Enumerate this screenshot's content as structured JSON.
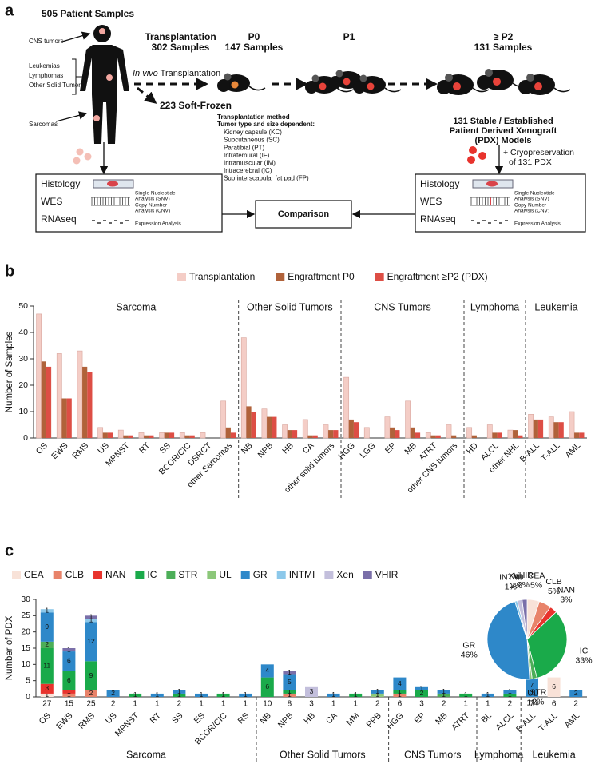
{
  "panel_a": {
    "label": "a",
    "patient_title": "505 Patient Samples",
    "sites": [
      "CNS tumors",
      "Leukemias",
      "Lymphomas",
      "Other Solid Tumors",
      "Sarcomas"
    ],
    "stages": [
      {
        "name": "Transplantation",
        "count": "302 Samples"
      },
      {
        "name": "P0",
        "count": "147 Samples"
      },
      {
        "name": "P1"
      },
      {
        "name": "≥ P2",
        "count": "131 Samples"
      }
    ],
    "transplant_italic": "In vivo",
    "transplant_text": "Transplantation",
    "frozen": "223 Soft-Frozen",
    "method_title": "Transplantation method",
    "method_subtitle": "Tumor type and size dependent:",
    "method_items": [
      "Kidney capsule  (KC)",
      "Subcutaneous (SC)",
      "Paratibial (PT)",
      "Intrafemural (IF)",
      "Intramuscular (IM)",
      "Intracerebral (IC)",
      "Sub interscapular fat pad (FP)"
    ],
    "models": [
      "131 Stable / Established",
      "Patient Derived Xenograft",
      "(PDX) Models"
    ],
    "cryo": [
      "+ Cryopreservation",
      "of 131 PDX"
    ],
    "analysis_rows": [
      "Histology",
      "WES",
      "RNAseq"
    ],
    "analysis_notes": [
      "Single Nucleotide",
      "Analysis (SNV)",
      "Copy Number",
      "Analysis (CNV)",
      "Expression Analysis"
    ],
    "comparison": "Comparison"
  },
  "chart_data": [
    {
      "type": "bar",
      "panel_label": "b",
      "ylabel": "Number of Samples",
      "ylim": [
        0,
        50
      ],
      "yticks": [
        0,
        10,
        20,
        30,
        40,
        50
      ],
      "groups": [
        {
          "label": "Sarcoma",
          "categories": [
            "OS",
            "EWS",
            "RMS",
            "US",
            "MPNST",
            "RT",
            "SS",
            "BCOR/CIC",
            "DSRCT",
            "other Sarcomas"
          ]
        },
        {
          "label": "Other Solid Tumors",
          "categories": [
            "NB",
            "NPB",
            "HB",
            "CA",
            "other solid tumors"
          ]
        },
        {
          "label": "CNS Tumors",
          "categories": [
            "HGG",
            "LGG",
            "EP",
            "MB",
            "ATRT",
            "other CNS tumors"
          ]
        },
        {
          "label": "Lymphoma",
          "categories": [
            "HD",
            "ALCL",
            "other NHL"
          ]
        },
        {
          "label": "Leukemia",
          "categories": [
            "B-ALL",
            "T-ALL",
            "AML"
          ]
        }
      ],
      "series": [
        {
          "name": "Transplantation",
          "color": "#f4cdc6",
          "values": [
            47,
            32,
            33,
            4,
            3,
            2,
            2,
            2,
            2,
            14,
            38,
            11,
            5,
            7,
            5,
            23,
            4,
            8,
            14,
            2,
            5,
            4,
            5,
            3,
            9,
            8,
            10
          ]
        },
        {
          "name": "Engraftment P0",
          "color": "#b0623a",
          "values": [
            29,
            15,
            27,
            2,
            1,
            1,
            2,
            1,
            0,
            4,
            12,
            8,
            3,
            1,
            3,
            7,
            0,
            4,
            4,
            1,
            1,
            1,
            2,
            3,
            7,
            6,
            2
          ]
        },
        {
          "name": "Engraftment ≥P2 (PDX)",
          "color": "#dd4e45",
          "values": [
            27,
            15,
            25,
            2,
            1,
            1,
            2,
            1,
            0,
            2,
            10,
            8,
            3,
            1,
            3,
            6,
            0,
            3,
            2,
            1,
            0,
            0,
            2,
            1,
            7,
            6,
            2
          ]
        }
      ]
    },
    {
      "type": "stacked_bar",
      "panel_label": "c",
      "ylabel": "Number of PDX",
      "ylim": [
        0,
        30
      ],
      "yticks": [
        0,
        5,
        10,
        15,
        20,
        25,
        30
      ],
      "groups": [
        {
          "label": "Sarcoma",
          "categories": [
            "OS",
            "EWS",
            "RMS",
            "US",
            "MPNST",
            "RT",
            "SS",
            "ES",
            "BCOR/CIC",
            "RS"
          ]
        },
        {
          "label": "Other Solid Tumors",
          "categories": [
            "NB",
            "NPB",
            "HB",
            "CA",
            "MM",
            "PPB"
          ]
        },
        {
          "label": "CNS Tumors",
          "categories": [
            "HGG",
            "EP",
            "MB",
            "ATRT"
          ]
        },
        {
          "label": "Lymphoma",
          "categories": [
            "BL",
            "ALCL"
          ]
        },
        {
          "label": "Leukemia",
          "categories": [
            "B-ALL",
            "T-ALL",
            "AML"
          ]
        }
      ],
      "totals": [
        27,
        15,
        25,
        2,
        1,
        1,
        2,
        1,
        1,
        1,
        10,
        8,
        3,
        1,
        1,
        2,
        6,
        3,
        2,
        1,
        1,
        2,
        7,
        6,
        2
      ],
      "series": [
        {
          "name": "CEA",
          "color": "#f8e2d8",
          "values": [
            1,
            null,
            null,
            null,
            null,
            null,
            null,
            null,
            null,
            null,
            null,
            null,
            null,
            null,
            null,
            null,
            null,
            null,
            null,
            null,
            null,
            null,
            null,
            6,
            null
          ]
        },
        {
          "name": "CLB",
          "color": "#e8836a",
          "values": [
            null,
            1,
            2,
            null,
            null,
            null,
            null,
            null,
            null,
            null,
            null,
            1,
            null,
            null,
            null,
            null,
            1,
            null,
            null,
            null,
            null,
            null,
            null,
            null,
            null
          ]
        },
        {
          "name": "NAN",
          "color": "#e8332d",
          "values": [
            3,
            1,
            null,
            null,
            null,
            null,
            null,
            null,
            null,
            null,
            null,
            null,
            null,
            null,
            null,
            null,
            null,
            null,
            null,
            null,
            null,
            null,
            null,
            null,
            null
          ]
        },
        {
          "name": "IC",
          "color": "#1aaa4a",
          "values": [
            11,
            6,
            9,
            null,
            1,
            null,
            1,
            null,
            1,
            null,
            6,
            1,
            null,
            null,
            1,
            null,
            1,
            2,
            null,
            1,
            null,
            1,
            null,
            null,
            null
          ]
        },
        {
          "name": "STR",
          "color": "#4cae58",
          "values": [
            2,
            null,
            null,
            null,
            null,
            null,
            null,
            null,
            null,
            null,
            null,
            null,
            null,
            null,
            null,
            null,
            null,
            null,
            1,
            null,
            null,
            null,
            null,
            null,
            null
          ]
        },
        {
          "name": "UL",
          "color": "#8cc77a",
          "values": [
            null,
            null,
            null,
            null,
            null,
            null,
            null,
            null,
            null,
            null,
            null,
            null,
            null,
            null,
            null,
            1,
            null,
            null,
            null,
            null,
            null,
            null,
            null,
            null,
            null
          ]
        },
        {
          "name": "GR",
          "color": "#2e88c9",
          "values": [
            9,
            6,
            12,
            2,
            null,
            1,
            1,
            1,
            null,
            1,
            4,
            5,
            null,
            1,
            null,
            1,
            4,
            1,
            1,
            null,
            1,
            1,
            7,
            null,
            2
          ]
        },
        {
          "name": "INTMI",
          "color": "#8cc8ea",
          "values": [
            1,
            null,
            1,
            null,
            null,
            null,
            null,
            null,
            null,
            null,
            null,
            null,
            null,
            null,
            null,
            null,
            null,
            null,
            null,
            null,
            null,
            null,
            null,
            null,
            null
          ]
        },
        {
          "name": "Xen",
          "color": "#c3bfdc",
          "values": [
            null,
            null,
            null,
            null,
            null,
            null,
            null,
            null,
            null,
            null,
            null,
            null,
            3,
            null,
            null,
            null,
            null,
            null,
            null,
            null,
            null,
            null,
            null,
            null,
            null
          ]
        },
        {
          "name": "VHIR",
          "color": "#7a6fa9",
          "values": [
            null,
            1,
            1,
            null,
            null,
            null,
            null,
            null,
            null,
            null,
            null,
            1,
            null,
            null,
            null,
            null,
            null,
            null,
            null,
            null,
            null,
            null,
            null,
            null,
            null
          ]
        }
      ]
    },
    {
      "type": "pie",
      "categories": [
        "CEA",
        "CLB",
        "NAN",
        "IC",
        "STR",
        "UL",
        "GR",
        "INTMI",
        "Xen",
        "VHIR"
      ],
      "values": [
        5,
        5,
        3,
        33,
        2,
        1,
        46,
        1,
        2,
        2
      ],
      "value_labels": [
        "5%",
        "5%",
        "3%",
        "33%",
        "2%",
        "1%",
        "46%",
        "1%",
        "2%",
        "2%"
      ],
      "colors": [
        "#f8e2d8",
        "#e8836a",
        "#e8332d",
        "#1aaa4a",
        "#4cae58",
        "#8cc77a",
        "#2e88c9",
        "#8cc8ea",
        "#c3bfdc",
        "#7a6fa9"
      ]
    }
  ]
}
